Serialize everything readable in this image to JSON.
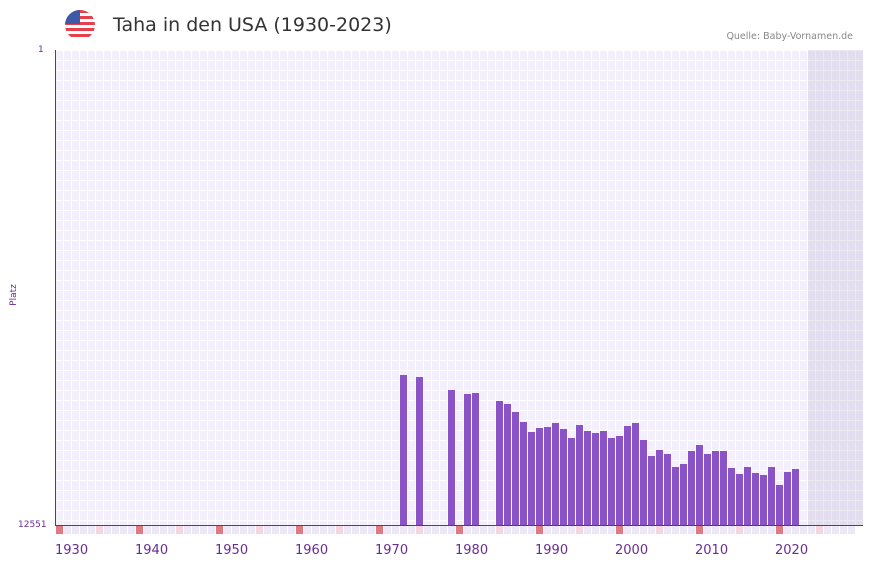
{
  "header": {
    "title": "Taha in den USA (1930-2023)",
    "source": "Quelle: Baby-Vornamen.de",
    "flag": "us-flag-icon"
  },
  "colors": {
    "bar": "#8a54c6",
    "axis": "#6a2c91",
    "decade_marker": "#e07a80",
    "half_marker": "#f5d5de"
  },
  "chart_data": {
    "type": "bar",
    "title": "Taha in den USA (1930-2023)",
    "xlabel": "",
    "ylabel": "Platz",
    "ylim": [
      12551,
      1
    ],
    "y_inverted": true,
    "xlim": [
      1929,
      2029
    ],
    "xticks": [
      "1930",
      "1940",
      "1950",
      "1960",
      "1970",
      "1980",
      "1990",
      "2000",
      "2010",
      "2020"
    ],
    "yticks": [
      "1",
      "12551"
    ],
    "grid": true,
    "categories": [
      1972,
      1974,
      1978,
      1980,
      1981,
      1984,
      1985,
      1986,
      1987,
      1988,
      1989,
      1990,
      1991,
      1992,
      1993,
      1994,
      1995,
      1996,
      1997,
      1998,
      1999,
      2000,
      2001,
      2002,
      2003,
      2004,
      2005,
      2006,
      2007,
      2008,
      2009,
      2010,
      2011,
      2012,
      2013,
      2014,
      2015,
      2016,
      2017,
      2018,
      2019,
      2020,
      2021
    ],
    "values": [
      8589,
      8642,
      8986,
      9092,
      9066,
      9277,
      9356,
      9568,
      9832,
      10096,
      9990,
      9964,
      9858,
      10017,
      10255,
      9911,
      10070,
      10123,
      10070,
      10255,
      10202,
      9938,
      9858,
      10308,
      10731,
      10572,
      10678,
      11021,
      10942,
      10599,
      10440,
      10678,
      10599,
      10599,
      11048,
      11206,
      11021,
      11180,
      11233,
      11021,
      11497,
      11153,
      11074
    ]
  }
}
